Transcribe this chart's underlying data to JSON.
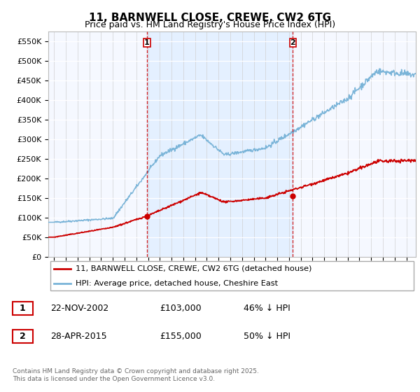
{
  "title": "11, BARNWELL CLOSE, CREWE, CW2 6TG",
  "subtitle": "Price paid vs. HM Land Registry's House Price Index (HPI)",
  "ylim": [
    0,
    575000
  ],
  "xlim_start": 1994.5,
  "xlim_end": 2025.8,
  "yticks": [
    0,
    50000,
    100000,
    150000,
    200000,
    250000,
    300000,
    350000,
    400000,
    450000,
    500000,
    550000
  ],
  "ytick_labels": [
    "£0",
    "£50K",
    "£100K",
    "£150K",
    "£200K",
    "£250K",
    "£300K",
    "£350K",
    "£400K",
    "£450K",
    "£500K",
    "£550K"
  ],
  "sale1_date": 2002.9,
  "sale1_price": 103000,
  "sale1_label": "1",
  "sale1_text": "22-NOV-2002",
  "sale1_price_text": "£103,000",
  "sale1_hpi_text": "46% ↓ HPI",
  "sale2_date": 2015.33,
  "sale2_price": 155000,
  "sale2_label": "2",
  "sale2_text": "28-APR-2015",
  "sale2_price_text": "£155,000",
  "sale2_hpi_text": "50% ↓ HPI",
  "hpi_color": "#7ab4d8",
  "price_color": "#cc0000",
  "vline_color": "#cc0000",
  "shade_color": "#ddeeff",
  "background_color": "#ffffff",
  "plot_bg_color": "#f5f8ff",
  "legend_label_price": "11, BARNWELL CLOSE, CREWE, CW2 6TG (detached house)",
  "legend_label_hpi": "HPI: Average price, detached house, Cheshire East",
  "footer": "Contains HM Land Registry data © Crown copyright and database right 2025.\nThis data is licensed under the Open Government Licence v3.0.",
  "title_fontsize": 11,
  "subtitle_fontsize": 9
}
